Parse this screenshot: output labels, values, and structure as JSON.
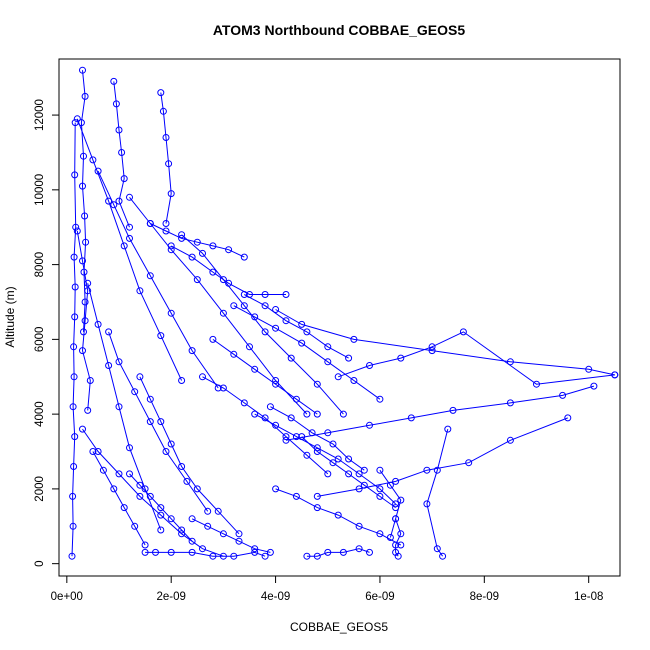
{
  "chart_data": {
    "type": "line",
    "title": "ATOM3 Northbound COBBAE_GEOS5",
    "xlabel": "COBBAE_GEOS5",
    "ylabel": "Altitude (m)",
    "xlim": [
      -1.5e-10,
      1.06e-08
    ],
    "ylim": [
      -330,
      13500
    ],
    "x_ticks": [
      0,
      2e-09,
      4e-09,
      6e-09,
      8e-09,
      1e-08
    ],
    "x_tick_labels": [
      "0e+00",
      "2e-09",
      "4e-09",
      "6e-09",
      "8e-09",
      "1e-08"
    ],
    "y_ticks": [
      0,
      2000,
      4000,
      6000,
      8000,
      10000,
      12000
    ],
    "y_tick_labels": [
      "0",
      "2000",
      "4000",
      "6000",
      "8000",
      "10000",
      "12000"
    ],
    "marker": "open-circle",
    "grid": false,
    "series_color": "#0000ff",
    "series": [
      {
        "x": [
          1e-10,
          1.2e-10,
          1.1e-10,
          1.3e-10,
          1.5e-10,
          1.2e-10,
          1.4e-10,
          1.3e-10,
          1.5e-10,
          1.6e-10,
          1.4e-10,
          1.7e-10,
          1.5e-10,
          1.6e-10
        ],
        "y": [
          200,
          1000,
          1800,
          2600,
          3400,
          4200,
          5000,
          5800,
          6600,
          7400,
          8200,
          9000,
          10400,
          11800
        ]
      },
      {
        "x": [
          3e-10,
          3.5e-10,
          2.8e-10,
          3.2e-10,
          3e-10,
          3.4e-10,
          3.6e-10,
          3.3e-10,
          3.5e-10,
          3.2e-10
        ],
        "y": [
          13200,
          12500,
          11800,
          10900,
          10100,
          9300,
          8600,
          7800,
          7000,
          6200
        ]
      },
      {
        "x": [
          9e-10,
          9.5e-10,
          1e-09,
          1.05e-09,
          1.1e-09,
          1e-09,
          1.2e-09
        ],
        "y": [
          12900,
          12300,
          11600,
          11000,
          10300,
          9700,
          9000
        ]
      },
      {
        "x": [
          1.8e-09,
          1.85e-09,
          1.9e-09,
          1.95e-09,
          2e-09,
          1.9e-09
        ],
        "y": [
          12600,
          12100,
          11400,
          10700,
          9900,
          9100
        ]
      },
      {
        "x": [
          2e-09,
          2.4e-09,
          2.8e-09,
          3.1e-09,
          3.5e-09,
          3.8e-09,
          4.2e-09
        ],
        "y": [
          8500,
          8200,
          7800,
          7500,
          7200,
          7200,
          7200
        ]
      },
      {
        "x": [
          4e-09,
          4.5e-09,
          5.5e-09,
          7e-09,
          8.5e-09,
          1e-08,
          1.05e-08
        ],
        "y": [
          6800,
          6400,
          6000,
          5700,
          5400,
          5200,
          5050
        ]
      },
      {
        "x": [
          1.05e-08,
          9e-09,
          7.6e-09,
          7e-09,
          6.4e-09,
          5.8e-09,
          5.2e-09
        ],
        "y": [
          5050,
          4800,
          6200,
          5800,
          5500,
          5300,
          5000
        ]
      },
      {
        "x": [
          1.01e-08,
          9.5e-09,
          8.5e-09,
          7.4e-09,
          6.6e-09,
          5.8e-09,
          5e-09,
          4.2e-09
        ],
        "y": [
          4750,
          4500,
          4300,
          4100,
          3900,
          3700,
          3500,
          3300
        ]
      },
      {
        "x": [
          9.6e-09,
          8.5e-09,
          7.7e-09,
          6.9e-09,
          6.3e-09,
          5.6e-09,
          4.8e-09
        ],
        "y": [
          3900,
          3300,
          2700,
          2500,
          2200,
          2000,
          1800
        ]
      },
      {
        "x": [
          7.3e-09,
          7.1e-09,
          6.9e-09,
          7.1e-09,
          7.2e-09
        ],
        "y": [
          3600,
          2500,
          1600,
          400,
          200
        ]
      },
      {
        "x": [
          6.3e-09,
          6e-09,
          5.6e-09,
          5.2e-09,
          4.8e-09,
          4.4e-09,
          4e-09,
          3.6e-09
        ],
        "y": [
          1600,
          2000,
          2400,
          2800,
          3100,
          3400,
          3700,
          4000
        ]
      },
      {
        "x": [
          6.3e-09,
          6.4e-09,
          6.3e-09,
          6.3e-09,
          6.35e-09
        ],
        "y": [
          1200,
          800,
          500,
          300,
          200
        ]
      },
      {
        "x": [
          3e-09,
          2.6e-09,
          2.2e-09,
          1.8e-09,
          1.4e-09,
          1e-09,
          6e-10,
          3e-10
        ],
        "y": [
          200,
          400,
          800,
          1300,
          1800,
          2400,
          3000,
          3600
        ]
      },
      {
        "x": [
          1.5e-09,
          1.7e-09,
          2e-09,
          2.4e-09,
          2.8e-09,
          3.2e-09,
          3.6e-09,
          3.8e-09
        ],
        "y": [
          300,
          300,
          300,
          300,
          200,
          200,
          300,
          200
        ]
      },
      {
        "x": [
          4.6e-09,
          4.8e-09,
          5e-09,
          5.3e-09,
          5.6e-09,
          5.8e-09
        ],
        "y": [
          200,
          200,
          300,
          300,
          400,
          300
        ]
      },
      {
        "x": [
          3.2e-09,
          3.6e-09,
          4e-09,
          4.5e-09,
          5e-09,
          5.5e-09,
          6e-09
        ],
        "y": [
          6900,
          6600,
          6300,
          5900,
          5400,
          4900,
          4400
        ]
      },
      {
        "x": [
          2.2e-09,
          2.6e-09,
          3e-09,
          3.4e-09,
          3.8e-09,
          4.3e-09,
          4.8e-09,
          5.3e-09
        ],
        "y": [
          8800,
          8300,
          7600,
          6900,
          6200,
          5500,
          4800,
          4000
        ]
      },
      {
        "x": [
          1.2e-09,
          1.6e-09,
          2e-09,
          2.5e-09,
          3e-09,
          3.5e-09,
          4e-09,
          4.6e-09
        ],
        "y": [
          9800,
          9100,
          8400,
          7600,
          6700,
          5800,
          4900,
          4000
        ]
      },
      {
        "x": [
          6e-10,
          9e-10,
          1.2e-09,
          1.6e-09,
          2e-09,
          2.4e-09,
          2.9e-09
        ],
        "y": [
          10500,
          9600,
          8700,
          7700,
          6700,
          5700,
          4700
        ]
      },
      {
        "x": [
          2e-10,
          5e-10,
          8e-10,
          1.1e-09,
          1.4e-09,
          1.8e-09,
          2.2e-09
        ],
        "y": [
          11900,
          10800,
          9700,
          8500,
          7300,
          6100,
          4900
        ]
      },
      {
        "x": [
          1.4e-09,
          1.6e-09,
          1.8e-09,
          2e-09,
          2.2e-09,
          2.5e-09,
          2.9e-09,
          3.3e-09
        ],
        "y": [
          5000,
          4400,
          3800,
          3200,
          2600,
          2000,
          1400,
          800
        ]
      },
      {
        "x": [
          8e-10,
          1e-09,
          1.3e-09,
          1.6e-09,
          1.9e-09,
          2.3e-09,
          2.7e-09
        ],
        "y": [
          6200,
          5400,
          4600,
          3800,
          3000,
          2200,
          1400
        ]
      },
      {
        "x": [
          4e-10,
          6e-10,
          8e-10,
          1e-09,
          1.2e-09,
          1.5e-09,
          1.8e-09
        ],
        "y": [
          7500,
          6400,
          5300,
          4200,
          3100,
          2000,
          900
        ]
      },
      {
        "x": [
          4.5e-09,
          4.8e-09,
          5.1e-09,
          5.4e-09,
          5.7e-09,
          6e-09,
          6.3e-09
        ],
        "y": [
          3400,
          3000,
          2700,
          2400,
          2100,
          1800,
          1500
        ]
      },
      {
        "x": [
          3.9e-09,
          4.3e-09,
          4.7e-09,
          5.1e-09,
          5.4e-09,
          5.7e-09
        ],
        "y": [
          4200,
          3900,
          3500,
          3200,
          2800,
          2500
        ]
      },
      {
        "x": [
          2.6e-09,
          3e-09,
          3.4e-09,
          3.8e-09,
          4.2e-09,
          4.6e-09,
          5e-09
        ],
        "y": [
          5000,
          4700,
          4300,
          3900,
          3400,
          2900,
          2400
        ]
      },
      {
        "x": [
          3.4e-09,
          3.8e-09,
          4.2e-09,
          4.6e-09,
          5e-09,
          5.4e-09
        ],
        "y": [
          7200,
          6900,
          6500,
          6200,
          5800,
          5500
        ]
      },
      {
        "x": [
          2.4e-09,
          2.7e-09,
          3e-09,
          3.3e-09,
          3.6e-09,
          3.9e-09
        ],
        "y": [
          1200,
          1000,
          800,
          600,
          400,
          300
        ]
      },
      {
        "x": [
          1.2e-09,
          1.4e-09,
          1.6e-09,
          1.8e-09,
          2e-09,
          2.2e-09,
          2.4e-09
        ],
        "y": [
          2400,
          2100,
          1800,
          1500,
          1200,
          900,
          600
        ]
      },
      {
        "x": [
          5e-10,
          7e-10,
          9e-10,
          1.1e-09,
          1.3e-09,
          1.5e-09
        ],
        "y": [
          3000,
          2500,
          2000,
          1500,
          1000,
          500
        ]
      },
      {
        "x": [
          2e-10,
          3e-10,
          4e-10,
          3.5e-10,
          3e-10,
          4.5e-10,
          4e-10
        ],
        "y": [
          8900,
          8100,
          7300,
          6500,
          5700,
          4900,
          4100
        ]
      },
      {
        "x": [
          1.6e-09,
          1.9e-09,
          2.2e-09,
          2.5e-09,
          2.8e-09,
          3.1e-09,
          3.4e-09
        ],
        "y": [
          9100,
          8900,
          8700,
          8600,
          8500,
          8400,
          8200
        ]
      },
      {
        "x": [
          6e-09,
          6.2e-09,
          6.4e-09,
          6.3e-09,
          6.2e-09
        ],
        "y": [
          2500,
          2100,
          1700,
          1200,
          700
        ]
      },
      {
        "x": [
          4e-09,
          4.4e-09,
          4.8e-09,
          5.2e-09,
          5.6e-09,
          6e-09,
          6.4e-09
        ],
        "y": [
          2000,
          1800,
          1500,
          1300,
          1000,
          800,
          500
        ]
      },
      {
        "x": [
          2.8e-09,
          3.2e-09,
          3.6e-09,
          4e-09,
          4.4e-09,
          4.8e-09
        ],
        "y": [
          6000,
          5600,
          5200,
          4800,
          4400,
          4000
        ]
      }
    ]
  }
}
